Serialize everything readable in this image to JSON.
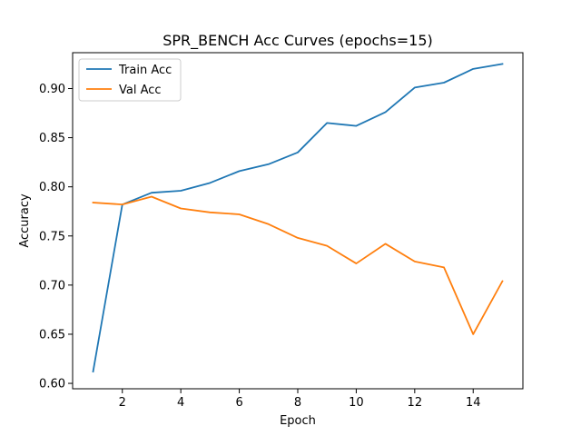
{
  "chart_data": {
    "type": "line",
    "title": "SPR_BENCH Acc Curves (epochs=15)",
    "xlabel": "Epoch",
    "ylabel": "Accuracy",
    "x": [
      1,
      2,
      3,
      4,
      5,
      6,
      7,
      8,
      9,
      10,
      11,
      12,
      13,
      14,
      15
    ],
    "xlim": [
      0.3,
      15.7
    ],
    "ylim": [
      0.5945,
      0.9365
    ],
    "xticks": [
      2,
      4,
      6,
      8,
      10,
      12,
      14
    ],
    "yticks": [
      0.6,
      0.65,
      0.7,
      0.75,
      0.8,
      0.85,
      0.9
    ],
    "xtick_labels": [
      "2",
      "4",
      "6",
      "8",
      "10",
      "12",
      "14"
    ],
    "ytick_labels": [
      "0.60",
      "0.65",
      "0.70",
      "0.75",
      "0.80",
      "0.85",
      "0.90"
    ],
    "grid": false,
    "legend_position": "top-left",
    "series": [
      {
        "name": "Train Acc",
        "color": "#1f77b4",
        "values": [
          0.612,
          0.782,
          0.794,
          0.796,
          0.804,
          0.816,
          0.823,
          0.835,
          0.865,
          0.862,
          0.876,
          0.901,
          0.906,
          0.92,
          0.925
        ]
      },
      {
        "name": "Val Acc",
        "color": "#ff7f0e",
        "values": [
          0.784,
          0.782,
          0.79,
          0.778,
          0.774,
          0.772,
          0.762,
          0.748,
          0.74,
          0.722,
          0.742,
          0.724,
          0.718,
          0.65,
          0.704
        ]
      }
    ]
  }
}
